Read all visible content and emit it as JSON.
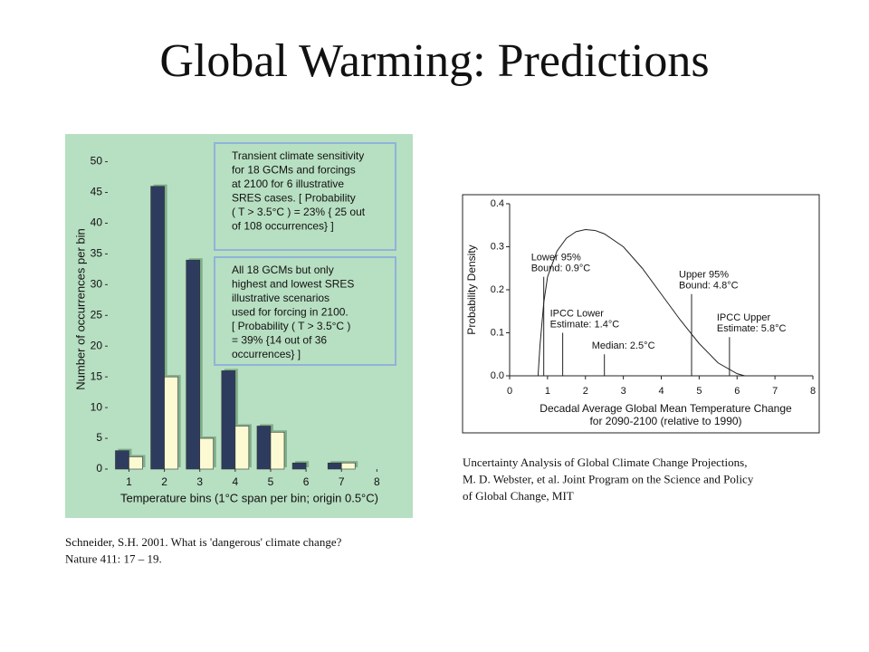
{
  "title": "Global Warming: Predictions",
  "captions": [
    [
      "Schneider, S.H. 2001. What is 'dangerous' climate change?",
      "Nature 411: 17 – 19."
    ],
    [
      "Uncertainty Analysis of Global Climate Change Projections,",
      "M. D. Webster, et al. Joint Program on the Science and Policy",
      "of Global Change, MIT"
    ]
  ],
  "chart_data": [
    {
      "type": "bar",
      "x": [
        1,
        2,
        3,
        4,
        5,
        6,
        7
      ],
      "series": [
        {
          "color": "#2d3c5e",
          "values": [
            3,
            46,
            34,
            16,
            7,
            1,
            1
          ]
        },
        {
          "color": "#fcfad2",
          "values": [
            2,
            15,
            5,
            7,
            6,
            0,
            1
          ]
        }
      ],
      "xlim": [
        0.4,
        8.4
      ],
      "xticks": [
        1,
        2,
        3,
        4,
        5,
        6,
        7,
        8
      ],
      "ylim": [
        0,
        52
      ],
      "yticks": [
        0,
        5,
        10,
        15,
        20,
        25,
        30,
        35,
        40,
        45,
        50
      ],
      "xlabel": "Temperature bins (1°C span per bin; origin 0.5°C)",
      "ylabel": "Number of occurrences per bin",
      "annotations": [
        [
          "Transient climate sensitivity",
          "for 18 GCMs and forcings",
          "at 2100 for 6 illustrative",
          "SRES cases. [ Probability",
          "( T > 3.5°C ) = 23% { 25 out",
          "of 108 occurrences} ]"
        ],
        [
          "All 18 GCMs but only",
          "highest and lowest SRES",
          "illustrative scenarios",
          "used for forcing in 2100.",
          "[ Probability ( T > 3.5°C )",
          "= 39% {14 out of 36",
          "occurrences} ]"
        ]
      ]
    },
    {
      "type": "line",
      "x": [
        0.75,
        0.8,
        0.9,
        1,
        1.25,
        1.5,
        1.75,
        2,
        2.25,
        2.5,
        3,
        3.5,
        4,
        4.5,
        5,
        5.5,
        6,
        6.2
      ],
      "series": [
        {
          "color": "#222222",
          "values": [
            0,
            0.07,
            0.17,
            0.23,
            0.29,
            0.32,
            0.335,
            0.34,
            0.338,
            0.33,
            0.3,
            0.25,
            0.19,
            0.13,
            0.075,
            0.03,
            0.005,
            0
          ]
        }
      ],
      "xlim": [
        0,
        8
      ],
      "xticks": [
        0,
        1,
        2,
        3,
        4,
        5,
        6,
        7,
        8
      ],
      "ylim": [
        0,
        0.4
      ],
      "yticks": [
        {
          "value": 0,
          "label": "0.0"
        },
        0.1,
        0.2,
        0.3,
        0.4
      ],
      "xlabel": [
        "Decadal Average Global Mean Temperature Change",
        "for 2090-2100 (relative to 1990)"
      ],
      "ylabel": "Probability Density",
      "markers": [
        {
          "x": 0.9,
          "y": 0.23,
          "label": [
            "Lower 95%",
            "Bound: 0.9°C"
          ]
        },
        {
          "x": 1.4,
          "y": 0.1,
          "label": [
            "IPCC Lower",
            "Estimate: 1.4°C"
          ]
        },
        {
          "x": 2.5,
          "y": 0.05,
          "label": [
            "Median: 2.5°C"
          ]
        },
        {
          "x": 4.8,
          "y": 0.19,
          "label": [
            "Upper 95%",
            "Bound: 4.8°C"
          ]
        },
        {
          "x": 5.8,
          "y": 0.09,
          "label": [
            "IPCC Upper",
            "Estimate: 5.8°C"
          ]
        }
      ]
    }
  ]
}
